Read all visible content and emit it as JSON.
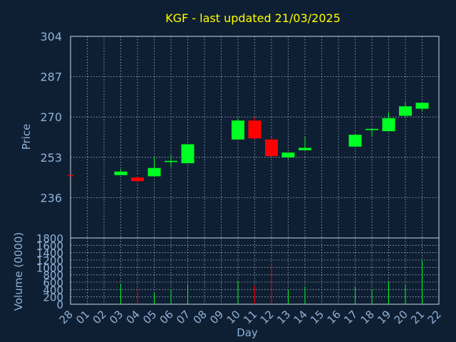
{
  "chart_data": {
    "type": "candlestick",
    "title": "KGF - last updated 21/03/2025",
    "xlabel": "Day",
    "ylabel": "Price",
    "volume_label": "Volume (0000)",
    "x_ticks": [
      "28",
      "01",
      "02",
      "03",
      "04",
      "05",
      "06",
      "07",
      "08",
      "09",
      "10",
      "11",
      "12",
      "13",
      "14",
      "15",
      "16",
      "17",
      "18",
      "19",
      "20",
      "21",
      "22"
    ],
    "price_ticks": [
      236,
      253,
      270,
      287,
      304
    ],
    "price_ylim": [
      219,
      304
    ],
    "volume_ticks": [
      0,
      200,
      400,
      600,
      800,
      1000,
      1200,
      1400,
      1600,
      1800
    ],
    "volume_ylim": [
      0,
      1800
    ],
    "grid": true,
    "colors": {
      "background": "#0f1f33",
      "text": "#8fb2d8",
      "title": "#ffff00",
      "grid": "#c8d4e0",
      "up": "#00ff22",
      "down": "#ff0000"
    },
    "candles": [
      {
        "day": "28",
        "open": 245.5,
        "high": 245.5,
        "low": 245.5,
        "close": 245.5,
        "volume": 0,
        "dir": "down"
      },
      {
        "day": "03",
        "open": 245.5,
        "high": 248.0,
        "low": 245.5,
        "close": 247.0,
        "volume": 550,
        "dir": "up"
      },
      {
        "day": "04",
        "open": 244.5,
        "high": 245.0,
        "low": 242.0,
        "close": 243.0,
        "volume": 420,
        "dir": "down"
      },
      {
        "day": "05",
        "open": 245.0,
        "high": 253.0,
        "low": 245.0,
        "close": 248.5,
        "volume": 300,
        "dir": "up"
      },
      {
        "day": "06",
        "open": 251.0,
        "high": 254.0,
        "low": 249.0,
        "close": 251.5,
        "volume": 400,
        "dir": "up"
      },
      {
        "day": "07",
        "open": 250.5,
        "high": 258.5,
        "low": 250.5,
        "close": 258.5,
        "volume": 520,
        "dir": "up"
      },
      {
        "day": "10",
        "open": 260.5,
        "high": 269.5,
        "low": 260.5,
        "close": 268.5,
        "volume": 640,
        "dir": "up"
      },
      {
        "day": "11",
        "open": 268.5,
        "high": 270.0,
        "low": 260.5,
        "close": 261.0,
        "volume": 500,
        "dir": "down"
      },
      {
        "day": "12",
        "open": 260.5,
        "high": 261.5,
        "low": 253.5,
        "close": 253.5,
        "volume": 1050,
        "dir": "down"
      },
      {
        "day": "13",
        "open": 253.0,
        "high": 255.0,
        "low": 252.5,
        "close": 255.0,
        "volume": 400,
        "dir": "up"
      },
      {
        "day": "14",
        "open": 256.0,
        "high": 261.5,
        "low": 256.0,
        "close": 257.0,
        "volume": 480,
        "dir": "up"
      },
      {
        "day": "17",
        "open": 257.5,
        "high": 262.5,
        "low": 257.5,
        "close": 262.5,
        "volume": 480,
        "dir": "up"
      },
      {
        "day": "18",
        "open": 264.5,
        "high": 265.0,
        "low": 262.0,
        "close": 265.0,
        "volume": 400,
        "dir": "up"
      },
      {
        "day": "19",
        "open": 264.0,
        "high": 272.0,
        "low": 264.0,
        "close": 269.5,
        "volume": 600,
        "dir": "up"
      },
      {
        "day": "20",
        "open": 270.5,
        "high": 276.5,
        "low": 270.5,
        "close": 274.5,
        "volume": 520,
        "dir": "up"
      },
      {
        "day": "21",
        "open": 273.5,
        "high": 276.0,
        "low": 272.5,
        "close": 276.0,
        "volume": 1200,
        "dir": "up"
      }
    ]
  }
}
